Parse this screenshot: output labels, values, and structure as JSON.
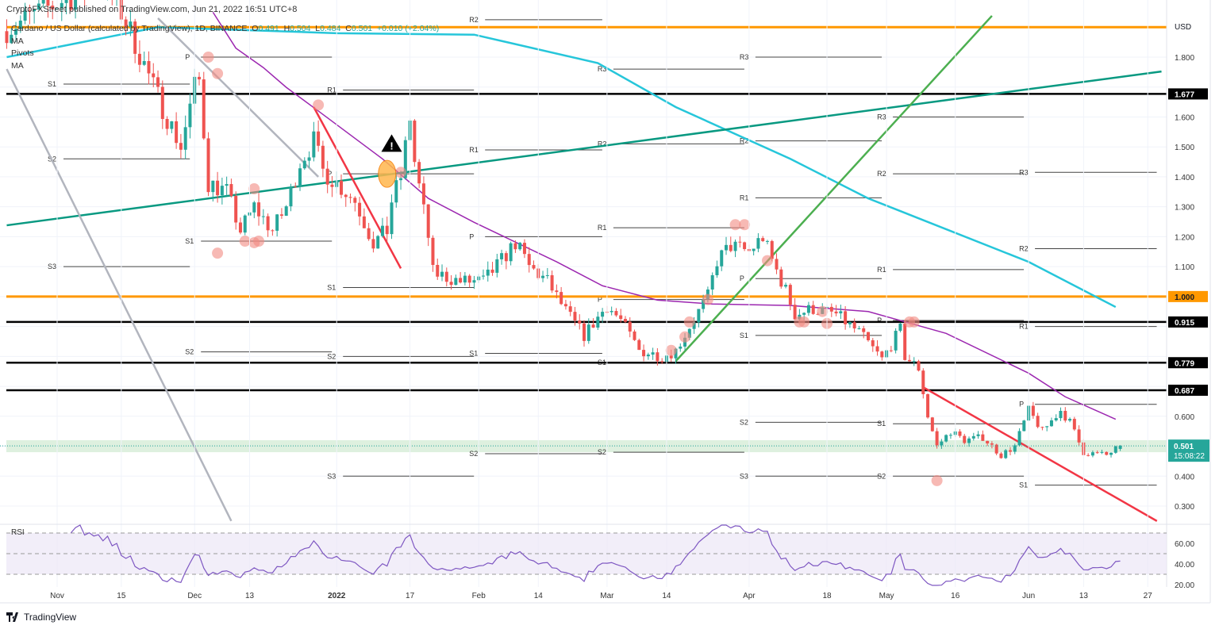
{
  "header": {
    "published": "CryptoFXStreet published on TradingView.com, Jun 21, 2022 16:51 UTC+8"
  },
  "legend": {
    "symbol": "Cardano / US Dollar (calculated by TradingView), 1D, BINANCE",
    "o_label": "O",
    "o": "0.491",
    "h_label": "H",
    "h": "0.504",
    "l_label": "L",
    "l": "0.484",
    "c_label": "C",
    "c": "0.501",
    "change": "+0.010 (+2.04%)",
    "indicators": [
      "MA",
      "Pivots",
      "MA"
    ]
  },
  "footer": {
    "brand": "TradingView"
  },
  "colors": {
    "up": "#26a69a",
    "down": "#ef5350",
    "ma200": "#26c6da",
    "ma50": "#9c27b0",
    "orange": "#ff9800",
    "trend_teal": "#089981",
    "trend_green": "#4caf50",
    "trend_red": "#f23645",
    "gray": "#b2b5be",
    "rsi": "#7e57c2"
  },
  "chart_data": {
    "type": "candlestick",
    "symbol": "ADA/USD",
    "interval": "1D",
    "currency_label": "USD",
    "ylim": [
      0.25,
      1.95
    ],
    "y_ticks": [
      "1.800",
      "1.700",
      "1.600",
      "1.500",
      "1.400",
      "1.300",
      "1.200",
      "1.100",
      "1.000",
      "0.900",
      "0.800",
      "0.700",
      "0.600",
      "0.500",
      "0.400",
      "0.300"
    ],
    "x_ticks": [
      {
        "date": "2021-11-01",
        "label": "Nov"
      },
      {
        "date": "2021-11-15",
        "label": "15"
      },
      {
        "date": "2021-12-01",
        "label": "Dec"
      },
      {
        "date": "2021-12-13",
        "label": "13"
      },
      {
        "date": "2022-01-01",
        "label": "2022"
      },
      {
        "date": "2022-01-17",
        "label": "17"
      },
      {
        "date": "2022-02-01",
        "label": "Feb"
      },
      {
        "date": "2022-02-14",
        "label": "14"
      },
      {
        "date": "2022-03-01",
        "label": "Mar"
      },
      {
        "date": "2022-03-14",
        "label": "14"
      },
      {
        "date": "2022-04-01",
        "label": "Apr"
      },
      {
        "date": "2022-04-18",
        "label": "18"
      },
      {
        "date": "2022-05-01",
        "label": "May"
      },
      {
        "date": "2022-05-16",
        "label": "16"
      },
      {
        "date": "2022-06-01",
        "label": "Jun"
      },
      {
        "date": "2022-06-13",
        "label": "13"
      },
      {
        "date": "2022-06-27",
        "label": "27"
      }
    ],
    "close_keypoints": [
      [
        "2021-11-01",
        1.98
      ],
      [
        "2021-11-10",
        2.05
      ],
      [
        "2021-11-15",
        1.95
      ],
      [
        "2021-11-18",
        1.85
      ],
      [
        "2021-11-22",
        1.7
      ],
      [
        "2021-11-25",
        1.6
      ],
      [
        "2021-11-28",
        1.5
      ],
      [
        "2021-12-01",
        1.7
      ],
      [
        "2021-12-02",
        1.72
      ],
      [
        "2021-12-04",
        1.38
      ],
      [
        "2021-12-08",
        1.35
      ],
      [
        "2021-12-11",
        1.22
      ],
      [
        "2021-12-14",
        1.3
      ],
      [
        "2021-12-18",
        1.22
      ],
      [
        "2021-12-21",
        1.3
      ],
      [
        "2021-12-24",
        1.45
      ],
      [
        "2021-12-27",
        1.52
      ],
      [
        "2021-12-29",
        1.42
      ],
      [
        "2022-01-01",
        1.38
      ],
      [
        "2022-01-05",
        1.32
      ],
      [
        "2022-01-09",
        1.18
      ],
      [
        "2022-01-12",
        1.22
      ],
      [
        "2022-01-13",
        1.32
      ],
      [
        "2022-01-15",
        1.4
      ],
      [
        "2022-01-17",
        1.6
      ],
      [
        "2022-01-18",
        1.45
      ],
      [
        "2022-01-21",
        1.2
      ],
      [
        "2022-01-22",
        1.08
      ],
      [
        "2022-01-28",
        1.05
      ],
      [
        "2022-02-02",
        1.05
      ],
      [
        "2022-02-06",
        1.12
      ],
      [
        "2022-02-09",
        1.18
      ],
      [
        "2022-02-12",
        1.1
      ],
      [
        "2022-02-16",
        1.05
      ],
      [
        "2022-02-20",
        0.95
      ],
      [
        "2022-02-24",
        0.87
      ],
      [
        "2022-03-01",
        0.97
      ],
      [
        "2022-03-04",
        0.92
      ],
      [
        "2022-03-08",
        0.82
      ],
      [
        "2022-03-13",
        0.8
      ],
      [
        "2022-03-16",
        0.82
      ],
      [
        "2022-03-19",
        0.9
      ],
      [
        "2022-03-23",
        1.0
      ],
      [
        "2022-03-25",
        1.12
      ],
      [
        "2022-03-28",
        1.17
      ],
      [
        "2022-04-01",
        1.15
      ],
      [
        "2022-04-04",
        1.2
      ],
      [
        "2022-04-06",
        1.12
      ],
      [
        "2022-04-09",
        1.02
      ],
      [
        "2022-04-11",
        0.94
      ],
      [
        "2022-04-15",
        0.96
      ],
      [
        "2022-04-20",
        0.94
      ],
      [
        "2022-04-25",
        0.88
      ],
      [
        "2022-04-30",
        0.79
      ],
      [
        "2022-05-04",
        0.89
      ],
      [
        "2022-05-05",
        0.8
      ],
      [
        "2022-05-08",
        0.76
      ],
      [
        "2022-05-10",
        0.6
      ],
      [
        "2022-05-12",
        0.5
      ],
      [
        "2022-05-15",
        0.55
      ],
      [
        "2022-05-18",
        0.52
      ],
      [
        "2022-05-22",
        0.53
      ],
      [
        "2022-05-26",
        0.47
      ],
      [
        "2022-05-29",
        0.5
      ],
      [
        "2022-06-01",
        0.62
      ],
      [
        "2022-06-04",
        0.55
      ],
      [
        "2022-06-08",
        0.62
      ],
      [
        "2022-06-10",
        0.58
      ],
      [
        "2022-06-13",
        0.48
      ],
      [
        "2022-06-18",
        0.47
      ],
      [
        "2022-06-21",
        0.501
      ]
    ],
    "last_candle": {
      "date": "2022-06-21",
      "open": 0.491,
      "high": 0.504,
      "low": 0.484,
      "close": 0.501
    },
    "last_price_tag": {
      "price": "0.501",
      "countdown": "15:08:22"
    },
    "horizontal_levels": [
      {
        "price": 1.9,
        "color": "orange"
      },
      {
        "price": 1.677,
        "label": "1.677",
        "color": "black"
      },
      {
        "price": 1.0,
        "label": "1.000",
        "color": "orange"
      },
      {
        "price": 0.915,
        "label": "0.915",
        "color": "black"
      },
      {
        "price": 0.779,
        "label": "0.779",
        "color": "black"
      },
      {
        "price": 0.687,
        "label": "0.687",
        "color": "black"
      }
    ],
    "support_zone": [
      0.48,
      0.52
    ],
    "ma200": [
      [
        "2021-10-21",
        1.8
      ],
      [
        "2021-11-23",
        1.9
      ],
      [
        "2022-01-01",
        1.88
      ],
      [
        "2022-01-31",
        1.875
      ],
      [
        "2022-02-27",
        1.78
      ],
      [
        "2022-03-16",
        1.633
      ],
      [
        "2022-04-10",
        1.46
      ],
      [
        "2022-04-27",
        1.328
      ],
      [
        "2022-06-01",
        1.116
      ],
      [
        "2022-06-20",
        0.965
      ]
    ],
    "ma50": [
      [
        "2021-12-05",
        1.95
      ],
      [
        "2021-12-10",
        1.83
      ],
      [
        "2021-12-16",
        1.765
      ],
      [
        "2021-12-21",
        1.699
      ],
      [
        "2021-12-28",
        1.62
      ],
      [
        "2022-01-11",
        1.46
      ],
      [
        "2022-01-21",
        1.328
      ],
      [
        "2022-01-31",
        1.248
      ],
      [
        "2022-02-18",
        1.116
      ],
      [
        "2022-02-28",
        1.036
      ],
      [
        "2022-03-12",
        0.988
      ],
      [
        "2022-03-24",
        0.975
      ],
      [
        "2022-04-10",
        0.97
      ],
      [
        "2022-04-27",
        0.95
      ],
      [
        "2022-05-14",
        0.877
      ],
      [
        "2022-06-01",
        0.744
      ],
      [
        "2022-06-09",
        0.665
      ],
      [
        "2022-06-20",
        0.59
      ]
    ],
    "trendlines": [
      {
        "color": "trend_teal",
        "from": [
          "2021-10-21",
          1.238
        ],
        "to": [
          "2022-06-30",
          1.752
        ]
      },
      {
        "color": "trend_green",
        "from": [
          "2022-03-16",
          0.784
        ],
        "to": [
          "2022-05-24",
          1.938
        ]
      },
      {
        "color": "trend_red",
        "from": [
          "2021-12-27",
          1.633
        ],
        "to": [
          "2022-01-15",
          1.094
        ]
      },
      {
        "color": "trend_red",
        "from": [
          "2022-05-09",
          0.697
        ],
        "to": [
          "2022-06-29",
          0.25
        ]
      },
      {
        "color": "gray",
        "from": [
          "2021-10-21",
          1.76
        ],
        "to": [
          "2021-12-09",
          0.25
        ]
      },
      {
        "color": "gray",
        "from": [
          "2021-11-23",
          1.93
        ],
        "to": [
          "2021-12-28",
          1.4
        ]
      }
    ],
    "pivots": [
      {
        "start": "2021-11-01",
        "end": "2021-12-01",
        "levels": [
          [
            "S1",
            1.71
          ],
          [
            "S2",
            1.46
          ],
          [
            "S3",
            1.1
          ]
        ]
      },
      {
        "start": "2021-12-01",
        "end": "2022-01-01",
        "levels": [
          [
            "P",
            1.8
          ],
          [
            "S1",
            1.185
          ],
          [
            "S2",
            0.815
          ]
        ]
      },
      {
        "start": "2022-01-01",
        "end": "2022-02-01",
        "levels": [
          [
            "R1",
            1.69
          ],
          [
            "P",
            1.41
          ],
          [
            "S1",
            1.03
          ],
          [
            "S2",
            0.8
          ],
          [
            "S3",
            0.4
          ]
        ]
      },
      {
        "start": "2022-02-01",
        "end": "2022-03-01",
        "levels": [
          [
            "R2",
            1.925
          ],
          [
            "R1",
            1.49
          ],
          [
            "P",
            1.2
          ],
          [
            "S1",
            0.81
          ],
          [
            "S2",
            0.475
          ]
        ]
      },
      {
        "start": "2022-03-01",
        "end": "2022-04-01",
        "levels": [
          [
            "R3",
            1.76
          ],
          [
            "R2",
            1.51
          ],
          [
            "R1",
            1.23
          ],
          [
            "P",
            0.99
          ],
          [
            "S1",
            0.78
          ],
          [
            "S2",
            0.48
          ]
        ]
      },
      {
        "start": "2022-04-01",
        "end": "2022-05-01",
        "levels": [
          [
            "R3",
            1.8
          ],
          [
            "R2",
            1.52
          ],
          [
            "R1",
            1.33
          ],
          [
            "P",
            1.06
          ],
          [
            "S1",
            0.87
          ],
          [
            "S2",
            0.58
          ],
          [
            "S3",
            0.4
          ]
        ]
      },
      {
        "start": "2022-05-01",
        "end": "2022-06-01",
        "levels": [
          [
            "R3",
            1.6
          ],
          [
            "R2",
            1.41
          ],
          [
            "R1",
            1.09
          ],
          [
            "P",
            0.92
          ],
          [
            "S1",
            0.575
          ],
          [
            "S2",
            0.4
          ]
        ]
      },
      {
        "start": "2022-06-01",
        "end": "2022-06-30",
        "levels": [
          [
            "R3",
            1.415
          ],
          [
            "R2",
            1.16
          ],
          [
            "R1",
            0.9
          ],
          [
            "P",
            0.64
          ],
          [
            "S1",
            0.37
          ]
        ]
      }
    ],
    "markers": [
      [
        "2021-12-04",
        1.8
      ],
      [
        "2021-12-06",
        1.745
      ],
      [
        "2021-12-06",
        1.145
      ],
      [
        "2021-12-12",
        1.185
      ],
      [
        "2021-12-14",
        1.18
      ],
      [
        "2021-12-15",
        1.185
      ],
      [
        "2021-12-14",
        1.36
      ],
      [
        "2021-12-28",
        1.64
      ],
      [
        "2022-01-15",
        1.415
      ],
      [
        "2022-03-15",
        0.82
      ],
      [
        "2022-03-18",
        0.865
      ],
      [
        "2022-03-19",
        0.915
      ],
      [
        "2022-03-23",
        0.99
      ],
      [
        "2022-03-29",
        1.24
      ],
      [
        "2022-03-31",
        1.24
      ],
      [
        "2022-04-05",
        1.12
      ],
      [
        "2022-04-12",
        0.915
      ],
      [
        "2022-04-13",
        0.915
      ],
      [
        "2022-04-17",
        0.95
      ],
      [
        "2022-04-18",
        0.91
      ],
      [
        "2022-05-06",
        0.915
      ],
      [
        "2022-05-07",
        0.915
      ],
      [
        "2022-05-12",
        0.385
      ]
    ],
    "highlight_marker": [
      "2022-01-12",
      1.41
    ],
    "warning_marker": [
      "2022-01-13",
      1.51
    ],
    "rsi": {
      "label": "RSI",
      "period": 14,
      "y_ticks": [
        "60.00",
        "40.00",
        "20.00"
      ],
      "band": [
        30,
        70
      ]
    }
  }
}
